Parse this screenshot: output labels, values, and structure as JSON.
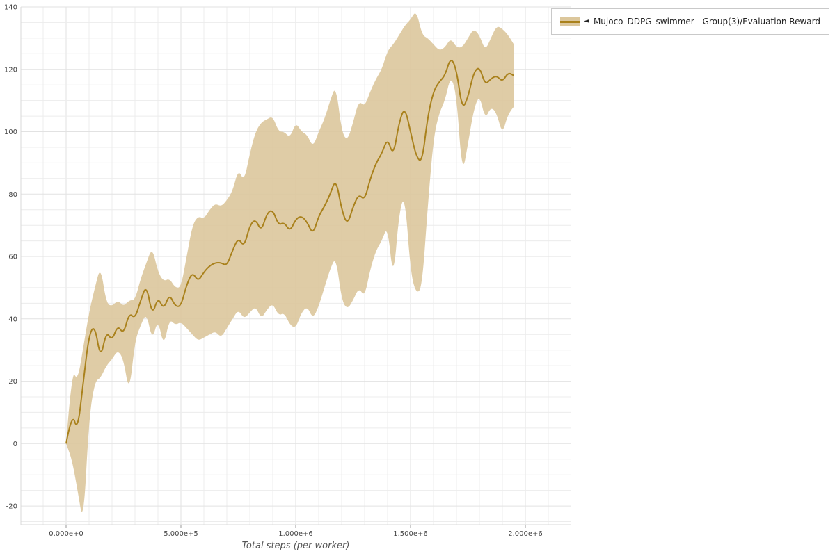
{
  "page": {
    "background": "#ffffff"
  },
  "legend": {
    "marker": "◄",
    "label": "Mujoco_DDPG_swimmer - Group(3)/Evaluation Reward",
    "line_color": "#a9811c",
    "band_color": "#dcc79c"
  },
  "chart_data": {
    "type": "line",
    "title": "",
    "xlabel": "Total steps (per worker)",
    "ylabel": "",
    "xlim": [
      -197000,
      2197000
    ],
    "ylim": [
      -26,
      140
    ],
    "grid": {
      "x_minor": 100000,
      "x_major": 500000,
      "y_minor": 5,
      "y_major": 20,
      "minor_color": "#ececec",
      "major_color": "#e2e2e2"
    },
    "axis_color": "#d9d9d9",
    "tick_color": "#999999",
    "legend_position": "top-right",
    "x_ticks": [
      {
        "value": 0,
        "label": "0.000e+0"
      },
      {
        "value": 500000,
        "label": "5.000e+5"
      },
      {
        "value": 1000000,
        "label": "1.000e+6"
      },
      {
        "value": 1500000,
        "label": "1.500e+6"
      },
      {
        "value": 2000000,
        "label": "2.000e+6"
      }
    ],
    "y_ticks": [
      {
        "value": -20,
        "label": "-20"
      },
      {
        "value": 0,
        "label": "0"
      },
      {
        "value": 20,
        "label": "20"
      },
      {
        "value": 40,
        "label": "40"
      },
      {
        "value": 60,
        "label": "60"
      },
      {
        "value": 80,
        "label": "80"
      },
      {
        "value": 100,
        "label": "100"
      },
      {
        "value": 120,
        "label": "120"
      },
      {
        "value": 140,
        "label": "140"
      }
    ],
    "series": [
      {
        "name": "Mujoco_DDPG_swimmer - Group(3)/Evaluation Reward",
        "color": "#a9811c",
        "band_color": "#dcc79c",
        "x": [
          0,
          25000,
          50000,
          75000,
          100000,
          125000,
          150000,
          175000,
          200000,
          225000,
          250000,
          275000,
          300000,
          325000,
          350000,
          375000,
          400000,
          425000,
          450000,
          475000,
          500000,
          525000,
          550000,
          575000,
          600000,
          625000,
          650000,
          675000,
          700000,
          725000,
          750000,
          775000,
          800000,
          825000,
          850000,
          875000,
          900000,
          925000,
          950000,
          975000,
          1000000,
          1025000,
          1050000,
          1075000,
          1100000,
          1125000,
          1150000,
          1175000,
          1200000,
          1225000,
          1250000,
          1275000,
          1300000,
          1325000,
          1350000,
          1375000,
          1400000,
          1425000,
          1450000,
          1475000,
          1500000,
          1525000,
          1550000,
          1575000,
          1600000,
          1625000,
          1650000,
          1675000,
          1700000,
          1725000,
          1750000,
          1775000,
          1800000,
          1825000,
          1850000,
          1875000,
          1900000,
          1925000,
          1950000
        ],
        "mean": [
          0,
          10,
          4,
          20,
          35,
          38,
          27,
          36,
          33,
          38,
          35,
          42,
          40,
          46,
          51,
          41,
          47,
          43,
          48,
          44,
          44,
          51,
          55,
          52,
          55,
          57,
          58,
          58,
          57,
          62,
          66,
          63,
          70,
          72,
          68,
          74,
          75,
          70,
          71,
          68,
          72,
          73,
          71,
          67,
          73,
          76,
          80,
          85,
          75,
          70,
          76,
          80,
          78,
          85,
          90,
          93,
          98,
          92,
          103,
          108,
          100,
          92,
          90,
          105,
          113,
          116,
          118,
          124,
          120,
          107,
          111,
          119,
          121,
          115,
          117,
          118,
          116,
          119,
          118
        ],
        "lower": [
          0,
          -5,
          -15,
          -26,
          8,
          20,
          21,
          25,
          27,
          30,
          27,
          16,
          33,
          38,
          42,
          33,
          40,
          31,
          40,
          38,
          39,
          37,
          35,
          33,
          34,
          35,
          36,
          34,
          37,
          40,
          43,
          40,
          42,
          44,
          40,
          43,
          45,
          41,
          42,
          38,
          37,
          42,
          44,
          40,
          44,
          50,
          56,
          60,
          46,
          43,
          46,
          50,
          47,
          56,
          62,
          65,
          70,
          52,
          74,
          80,
          55,
          48,
          50,
          76,
          98,
          106,
          110,
          118,
          112,
          86,
          96,
          107,
          112,
          104,
          108,
          106,
          99,
          106,
          108
        ],
        "upper": [
          0,
          24,
          20,
          31,
          42,
          50,
          57,
          45,
          44,
          46,
          44,
          46,
          46,
          53,
          58,
          63,
          55,
          52,
          53,
          50,
          50,
          60,
          70,
          73,
          72,
          75,
          77,
          76,
          78,
          81,
          88,
          84,
          93,
          100,
          103,
          104,
          105,
          100,
          100,
          98,
          103,
          100,
          99,
          95,
          100,
          104,
          110,
          115,
          100,
          97,
          103,
          110,
          108,
          113,
          117,
          120,
          126,
          128,
          131,
          134,
          136,
          139,
          131,
          130,
          128,
          126,
          127,
          130,
          127,
          127,
          130,
          133,
          131,
          126,
          130,
          134,
          133,
          131,
          128
        ]
      }
    ]
  }
}
